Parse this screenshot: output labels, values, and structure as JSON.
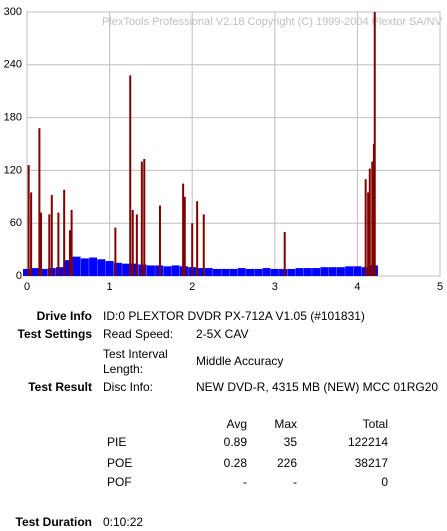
{
  "chart_data": {
    "type": "bar",
    "watermark": "PlexTools Professional V2.18 Copyright (C) 1999-2004 Plextor SA/NV",
    "xlim": [
      0,
      5
    ],
    "xticks": [
      0,
      1,
      2,
      3,
      4,
      5
    ],
    "ylim": [
      0,
      300
    ],
    "yticks": [
      0,
      60,
      120,
      180,
      240,
      300
    ],
    "grid": true,
    "series": [
      {
        "color": "#0000ff",
        "x": [
          0,
          0.1,
          0.2,
          0.3,
          0.4,
          0.5,
          0.6,
          0.7,
          0.8,
          0.9,
          1,
          1.1,
          1.2,
          1.3,
          1.4,
          1.5,
          1.6,
          1.7,
          1.8,
          1.9,
          2,
          2.1,
          2.2,
          2.3,
          2.4,
          2.5,
          2.6,
          2.7,
          2.8,
          2.9,
          3,
          3.1,
          3.2,
          3.3,
          3.4,
          3.5,
          3.6,
          3.7,
          3.8,
          3.9,
          4,
          4.1,
          4.2
        ],
        "values": [
          8,
          9,
          8,
          9,
          10,
          18,
          22,
          20,
          21,
          19,
          17,
          15,
          14,
          14,
          13,
          12,
          12,
          11,
          12,
          11,
          10,
          9,
          9,
          8,
          8,
          8,
          9,
          8,
          8,
          9,
          8,
          8,
          8,
          9,
          9,
          9,
          10,
          10,
          10,
          11,
          11,
          10,
          12
        ]
      },
      {
        "color": "#800000",
        "x": [
          0.02,
          0.05,
          0.15,
          0.17,
          0.27,
          0.3,
          0.38,
          0.45,
          0.52,
          0.54,
          1.07,
          1.25,
          1.28,
          1.33,
          1.39,
          1.42,
          1.61,
          1.89,
          1.91,
          2,
          2.06,
          2.14,
          3.12,
          4.1,
          4.13,
          4.15,
          4.18,
          4.2,
          4.21
        ],
        "values": [
          126,
          95,
          168,
          72,
          70,
          92,
          72,
          98,
          52,
          75,
          55,
          228,
          75,
          70,
          130,
          133,
          80,
          105,
          90,
          60,
          85,
          70,
          50,
          110,
          95,
          122,
          130,
          150,
          300
        ]
      }
    ]
  },
  "info": {
    "drive_label": "Drive Info",
    "drive_value": "ID:0 PLEXTOR DVDR PX-712A V1.05 (#101831)",
    "settings_label": "Test Settings",
    "read_speed_label": "Read Speed:",
    "read_speed_value": "2-5X CAV",
    "interval_label": "Test Interval Length:",
    "interval_value": "Middle Accuracy",
    "result_label": "Test Result",
    "disc_label": "Disc Info:",
    "disc_value": "NEW DVD-R, 4315 MB (NEW) MCC 01RG20",
    "stats_header": [
      "Avg",
      "Max",
      "Total"
    ],
    "stats": [
      [
        "PIE",
        0.89,
        35,
        122214
      ],
      [
        "POE",
        0.28,
        226,
        38217
      ],
      [
        "POF",
        "-",
        "-",
        0
      ]
    ],
    "duration_label": "Test Duration",
    "duration_value": "0:10:22"
  }
}
